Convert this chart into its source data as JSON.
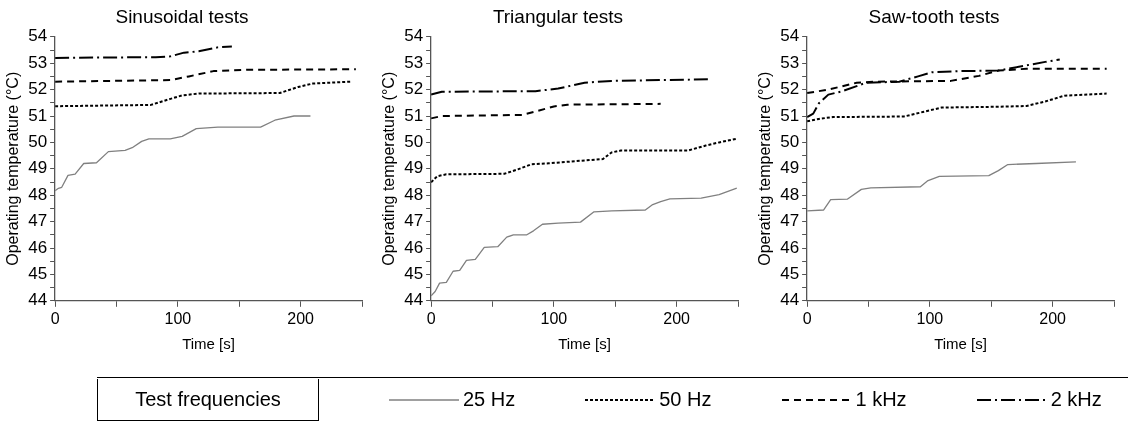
{
  "chart_data": [
    {
      "type": "line",
      "title": "Sinusoidal tests",
      "xlabel": "Time [s]",
      "ylabel": "Operating temperature (°C)",
      "xlim": [
        0,
        250
      ],
      "ylim": [
        44,
        54
      ],
      "xticks": [
        0,
        {
          "value": 50,
          "label": null
        },
        100,
        {
          "value": 150,
          "label": null
        },
        200,
        {
          "value": 250,
          "label": null
        }
      ],
      "yticks": [
        44,
        {
          "value": 44.5,
          "label": null
        },
        45,
        {
          "value": 45.5,
          "label": null
        },
        46,
        {
          "value": 46.5,
          "label": null
        },
        47,
        {
          "value": 47.5,
          "label": null
        },
        48,
        {
          "value": 48.5,
          "label": null
        },
        49,
        {
          "value": 49.5,
          "label": null
        },
        50,
        {
          "value": 50.5,
          "label": null
        },
        51,
        {
          "value": 51.5,
          "label": null
        },
        52,
        {
          "value": 52.5,
          "label": null
        },
        53,
        {
          "value": 53.5,
          "label": null
        },
        54
      ],
      "legend": "bottom",
      "legend_title": "Test frequencies",
      "series": [
        {
          "name": "25 Hz",
          "color": "#808080",
          "line_style": "solid",
          "x": [
            0,
            2.7,
            5.4,
            10.5,
            16.3,
            23.3,
            33.7,
            43.4,
            57,
            62.8,
            70.5,
            76.4,
            93.8,
            103.5,
            115,
            132.6,
            167.4,
            179,
            194.6,
            208
          ],
          "values": [
            48.17,
            48.26,
            48.3,
            48.75,
            48.8,
            49.2,
            49.23,
            49.65,
            49.7,
            49.8,
            50.04,
            50.13,
            50.13,
            50.23,
            50.52,
            50.58,
            50.58,
            50.84,
            51.0,
            51.0
          ]
        },
        {
          "name": "50 Hz",
          "color": "#000000",
          "line_style": "dotted",
          "x": [
            0,
            78,
            94,
            103.5,
            117,
            183,
            198,
            210,
            241
          ],
          "values": [
            51.37,
            51.42,
            51.65,
            51.78,
            51.85,
            51.87,
            52.1,
            52.23,
            52.3
          ]
        },
        {
          "name": "1 kHz",
          "color": "#000000",
          "line_style": "dashed",
          "x": [
            0,
            94,
            109,
            129,
            156,
            245
          ],
          "values": [
            52.3,
            52.36,
            52.5,
            52.7,
            52.75,
            52.77
          ]
        },
        {
          "name": "2 kHz",
          "color": "#000000",
          "line_style": "dashdot",
          "x": [
            0,
            82,
            94,
            105,
            117,
            132.5,
            144
          ],
          "values": [
            53.2,
            53.23,
            53.26,
            53.4,
            53.45,
            53.6,
            53.63
          ]
        }
      ]
    },
    {
      "type": "line",
      "title": "Triangular tests",
      "xlabel": "Time [s]",
      "ylabel": "Operating temperature (°C)",
      "xlim": [
        0,
        250
      ],
      "ylim": [
        44,
        54
      ],
      "xticks": [
        0,
        {
          "value": 50,
          "label": null
        },
        100,
        {
          "value": 150,
          "label": null
        },
        200,
        {
          "value": 250,
          "label": null
        }
      ],
      "yticks": [
        44,
        {
          "value": 44.5,
          "label": null
        },
        45,
        {
          "value": 45.5,
          "label": null
        },
        46,
        {
          "value": 46.5,
          "label": null
        },
        47,
        {
          "value": 47.5,
          "label": null
        },
        48,
        {
          "value": 48.5,
          "label": null
        },
        49,
        {
          "value": 49.5,
          "label": null
        },
        50,
        {
          "value": 50.5,
          "label": null
        },
        51,
        {
          "value": 51.5,
          "label": null
        },
        52,
        {
          "value": 52.5,
          "label": null
        },
        53,
        {
          "value": 53.5,
          "label": null
        },
        54
      ],
      "series": [
        {
          "color": "#808080",
          "line_style": "solid",
          "x": [
            0,
            3.3,
            6.9,
            12.4,
            17.9,
            23.3,
            28.8,
            36,
            43.3,
            54.3,
            61.6,
            67,
            78,
            83.4,
            90.7,
            103.5,
            121.7,
            132.7,
            147.2,
            174.5,
            180,
            187,
            194.5,
            220,
            234.6,
            249
          ],
          "values": [
            44.19,
            44.35,
            44.67,
            44.7,
            45.12,
            45.15,
            45.53,
            45.57,
            46.02,
            46.05,
            46.41,
            46.5,
            46.5,
            46.65,
            46.9,
            46.94,
            46.98,
            47.37,
            47.41,
            47.44,
            47.63,
            47.76,
            47.86,
            47.89,
            48.02,
            48.27
          ]
        },
        {
          "color": "#000000",
          "line_style": "dotted",
          "x": [
            0,
            5,
            12.4,
            59.7,
            70.7,
            81.6,
            96,
            140,
            147,
            154.5,
            209,
            223.7,
            234.6,
            249
          ],
          "values": [
            48.49,
            48.72,
            48.79,
            48.81,
            48.98,
            49.17,
            49.21,
            49.37,
            49.62,
            49.69,
            49.69,
            49.88,
            50.0,
            50.14
          ]
        },
        {
          "color": "#000000",
          "line_style": "dashed",
          "x": [
            0,
            8.7,
            74,
            85,
            100,
            111,
            187
          ],
          "values": [
            50.91,
            51.0,
            51.04,
            51.17,
            51.36,
            51.43,
            51.46
          ]
        },
        {
          "color": "#000000",
          "line_style": "dashdot",
          "x": [
            0,
            8.7,
            85,
            103.5,
            125,
            147,
            227
          ],
          "values": [
            51.81,
            51.92,
            51.94,
            52.04,
            52.26,
            52.33,
            52.39
          ]
        }
      ]
    },
    {
      "type": "line",
      "title": "Saw-tooth tests",
      "xlabel": "Time [s]",
      "ylabel": "Operating temperature (°C)",
      "xlim": [
        0,
        250
      ],
      "ylim": [
        44,
        54
      ],
      "xticks": [
        0,
        {
          "value": 50,
          "label": null
        },
        100,
        {
          "value": 150,
          "label": null
        },
        200,
        {
          "value": 250,
          "label": null
        }
      ],
      "yticks": [
        44,
        {
          "value": 44.5,
          "label": null
        },
        45,
        {
          "value": 45.5,
          "label": null
        },
        46,
        {
          "value": 46.5,
          "label": null
        },
        47,
        {
          "value": 47.5,
          "label": null
        },
        48,
        {
          "value": 48.5,
          "label": null
        },
        49,
        {
          "value": 49.5,
          "label": null
        },
        50,
        {
          "value": 50.5,
          "label": null
        },
        51,
        {
          "value": 51.5,
          "label": null
        },
        52,
        {
          "value": 52.5,
          "label": null
        },
        53,
        {
          "value": 53.5,
          "label": null
        },
        54
      ],
      "series": [
        {
          "color": "#808080",
          "line_style": "solid",
          "x": [
            0,
            13.5,
            19.2,
            32.7,
            44.2,
            51.9,
            92.3,
            98,
            107.7,
            148,
            155.8,
            163.5,
            186.5,
            219
          ],
          "values": [
            47.41,
            47.44,
            47.83,
            47.85,
            48.22,
            48.28,
            48.32,
            48.54,
            48.71,
            48.74,
            48.93,
            49.16,
            49.2,
            49.26
          ]
        },
        {
          "color": "#000000",
          "line_style": "dotted",
          "x": [
            0,
            9.6,
            21,
            78.8,
            94.2,
            109.6,
            155.8,
            178.8,
            194,
            209.6,
            244
          ],
          "values": [
            50.8,
            50.89,
            50.96,
            50.98,
            51.15,
            51.32,
            51.35,
            51.38,
            51.55,
            51.77,
            51.85
          ]
        },
        {
          "color": "#000000",
          "line_style": "dashed",
          "x": [
            0,
            17.3,
            40.4,
            55.8,
            117,
            140,
            155.8,
            178.8,
            244
          ],
          "values": [
            51.87,
            52.0,
            52.26,
            52.3,
            52.33,
            52.52,
            52.72,
            52.79,
            52.79
          ]
        },
        {
          "color": "#000000",
          "line_style": "dashdot",
          "x": [
            0,
            5,
            9.6,
            17.3,
            28.8,
            48,
            75,
            90.4,
            102,
            125,
            155.8,
            178.8,
            194,
            205.8
          ],
          "values": [
            50.96,
            51.09,
            51.48,
            51.81,
            51.94,
            52.26,
            52.3,
            52.5,
            52.66,
            52.7,
            52.72,
            52.92,
            53.05,
            53.14
          ]
        }
      ]
    }
  ]
}
